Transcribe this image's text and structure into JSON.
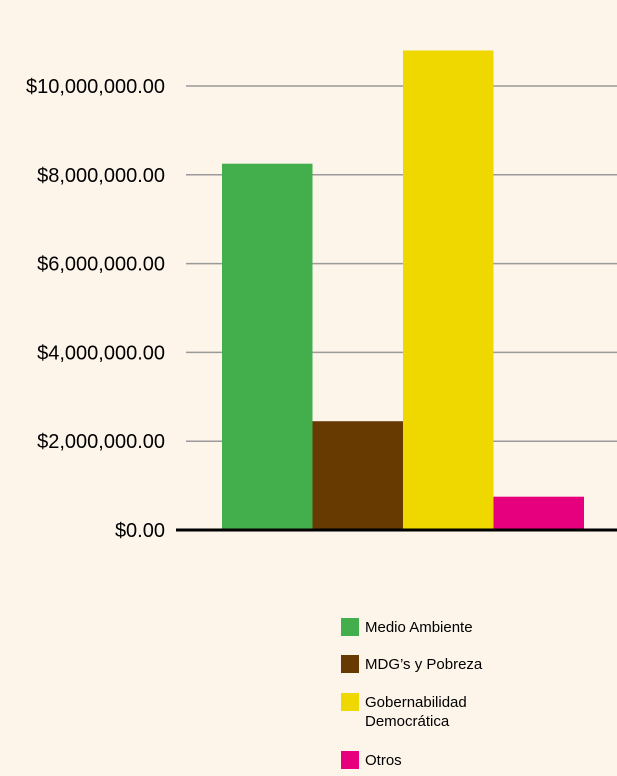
{
  "chart_data": {
    "type": "bar",
    "title": "",
    "xlabel": "",
    "ylabel": "",
    "ylim": [
      0,
      10000000
    ],
    "y_ticks": [
      {
        "value": 0,
        "label": "$0.00"
      },
      {
        "value": 2000000,
        "label": "$2,000,000.00"
      },
      {
        "value": 4000000,
        "label": "$4,000,000.00"
      },
      {
        "value": 6000000,
        "label": "$6,000,000.00"
      },
      {
        "value": 8000000,
        "label": "$8,000,000.00"
      },
      {
        "value": 10000000,
        "label": "$10,000,000.00"
      }
    ],
    "grid": true,
    "legend_position": "bottom-right",
    "series": [
      {
        "name": "Medio Ambiente",
        "legend_lines": [
          "Medio Ambiente"
        ],
        "value": 8250000,
        "color": "#43AE4C"
      },
      {
        "name": "MDG’s y Pobreza",
        "legend_lines": [
          "MDG’s y Pobreza"
        ],
        "value": 2450000,
        "color": "#663A00"
      },
      {
        "name": "Gobernabilidad Democrática",
        "legend_lines": [
          "Gobernabilidad",
          "Democrática"
        ],
        "value": 10800000,
        "color": "#EED800"
      },
      {
        "name": "Otros",
        "legend_lines": [
          "Otros"
        ],
        "value": 750000,
        "color": "#E6007E"
      }
    ]
  }
}
